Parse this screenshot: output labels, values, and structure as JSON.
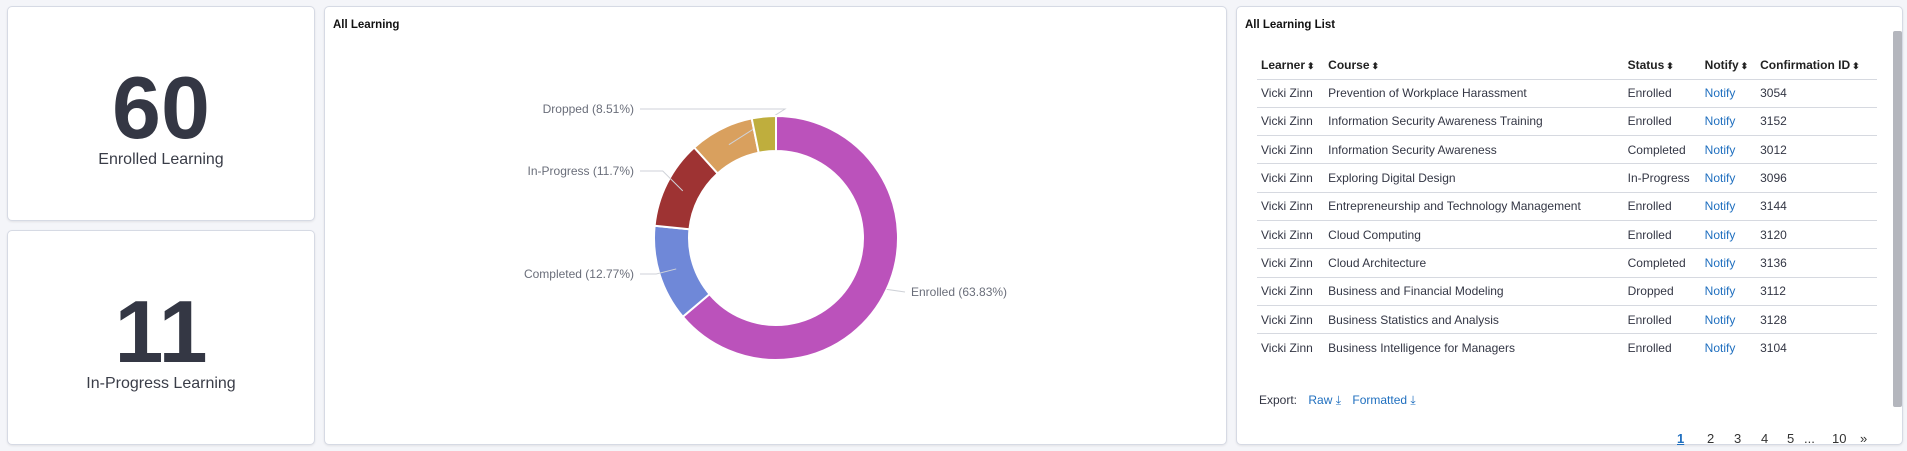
{
  "kpis": [
    {
      "value": "60",
      "label": "Enrolled Learning"
    },
    {
      "value": "11",
      "label": "In-Progress Learning"
    }
  ],
  "donut_panel": {
    "title": "All Learning"
  },
  "chart_data": {
    "type": "pie",
    "donut": true,
    "slices": [
      {
        "label": "Enrolled (63.83%)",
        "value": 63.83,
        "color": "#bb52bb"
      },
      {
        "label": "Completed (12.77%)",
        "value": 12.77,
        "color": "#6f88d8"
      },
      {
        "label": "In-Progress (11.7%)",
        "value": 11.7,
        "color": "#9e3333"
      },
      {
        "label": "Dropped (8.51%)",
        "value": 8.51,
        "color": "#d9a05e"
      },
      {
        "label": "",
        "value": 3.19,
        "color": "#bfae3d"
      }
    ]
  },
  "list_panel": {
    "title": "All Learning List",
    "columns": [
      "Learner",
      "Course",
      "Status",
      "Notify",
      "Confirmation ID"
    ],
    "rows": [
      [
        "Vicki Zinn",
        "Prevention of Workplace Harassment",
        "Enrolled",
        "Notify",
        "3054"
      ],
      [
        "Vicki Zinn",
        "Information Security Awareness Training",
        "Enrolled",
        "Notify",
        "3152"
      ],
      [
        "Vicki Zinn",
        "Information Security Awareness",
        "Completed",
        "Notify",
        "3012"
      ],
      [
        "Vicki Zinn",
        "Exploring Digital Design",
        "In-Progress",
        "Notify",
        "3096"
      ],
      [
        "Vicki Zinn",
        "Entrepreneurship and Technology Management",
        "Enrolled",
        "Notify",
        "3144"
      ],
      [
        "Vicki Zinn",
        "Cloud Computing",
        "Enrolled",
        "Notify",
        "3120"
      ],
      [
        "Vicki Zinn",
        "Cloud Architecture",
        "Completed",
        "Notify",
        "3136"
      ],
      [
        "Vicki Zinn",
        "Business and Financial Modeling",
        "Dropped",
        "Notify",
        "3112"
      ],
      [
        "Vicki Zinn",
        "Business Statistics and Analysis",
        "Enrolled",
        "Notify",
        "3128"
      ],
      [
        "Vicki Zinn",
        "Business Intelligence for Managers",
        "Enrolled",
        "Notify",
        "3104"
      ]
    ],
    "export": {
      "label": "Export:",
      "raw": "Raw",
      "formatted": "Formatted"
    },
    "pagination": {
      "pages": [
        "1",
        "2",
        "3",
        "4",
        "5",
        "...",
        "10",
        "»"
      ],
      "current": "1"
    },
    "link_color": "#1f6fbf"
  }
}
